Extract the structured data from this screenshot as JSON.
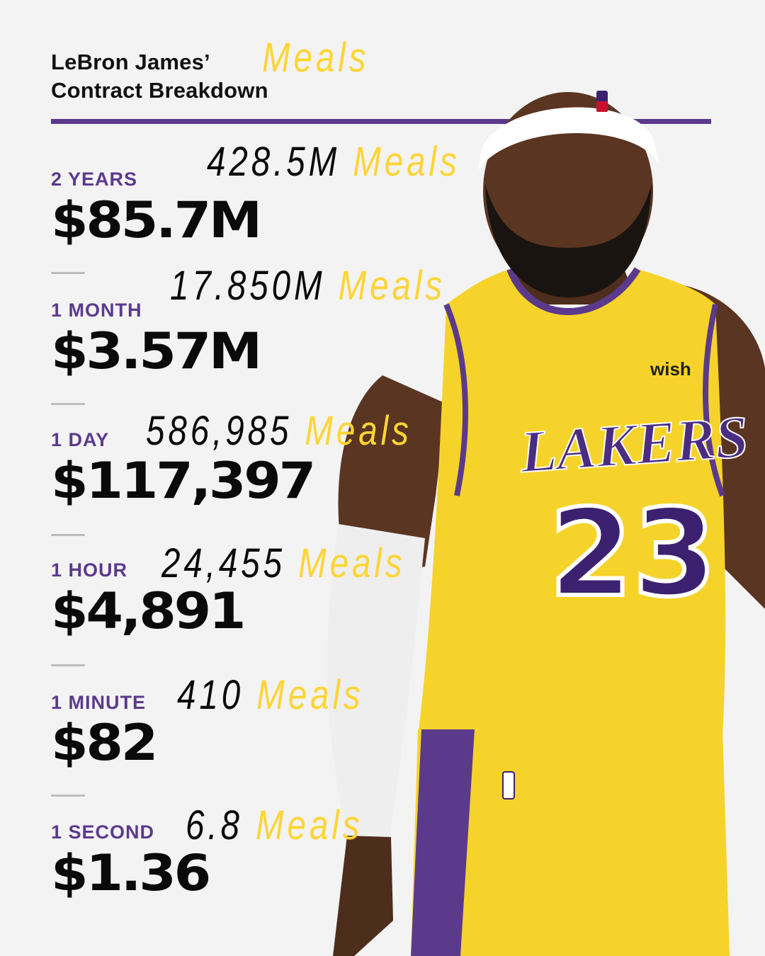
{
  "header": {
    "title_line1": "LeBron James’",
    "title_line2": "Contract Breakdown",
    "title_meals": "Meals"
  },
  "rows": [
    {
      "label": "2 YEARS",
      "amount": "$85.7M",
      "meals_num": "428.5M",
      "meals_word": "Meals"
    },
    {
      "label": "1 MONTH",
      "amount": "$3.57M",
      "meals_num": "17.850M",
      "meals_word": "Meals"
    },
    {
      "label": "1 DAY",
      "amount": "$117,397",
      "meals_num": "586,985",
      "meals_word": "Meals"
    },
    {
      "label": "1 HOUR",
      "amount": "$4,891",
      "meals_num": "24,455",
      "meals_word": "Meals"
    },
    {
      "label": "1 MINUTE",
      "amount": "$82",
      "meals_num": "410",
      "meals_word": "Meals"
    },
    {
      "label": "1 SECOND",
      "amount": "$1.36",
      "meals_num": "6.8",
      "meals_word": "Meals"
    }
  ],
  "jersey": {
    "team": "LAKERS",
    "number": "23",
    "sponsor": "wish",
    "headband_logo": "nba-logo"
  },
  "colors": {
    "purple": "#5b3a8c",
    "gold": "#fdd535",
    "background": "#f3f3f3"
  }
}
